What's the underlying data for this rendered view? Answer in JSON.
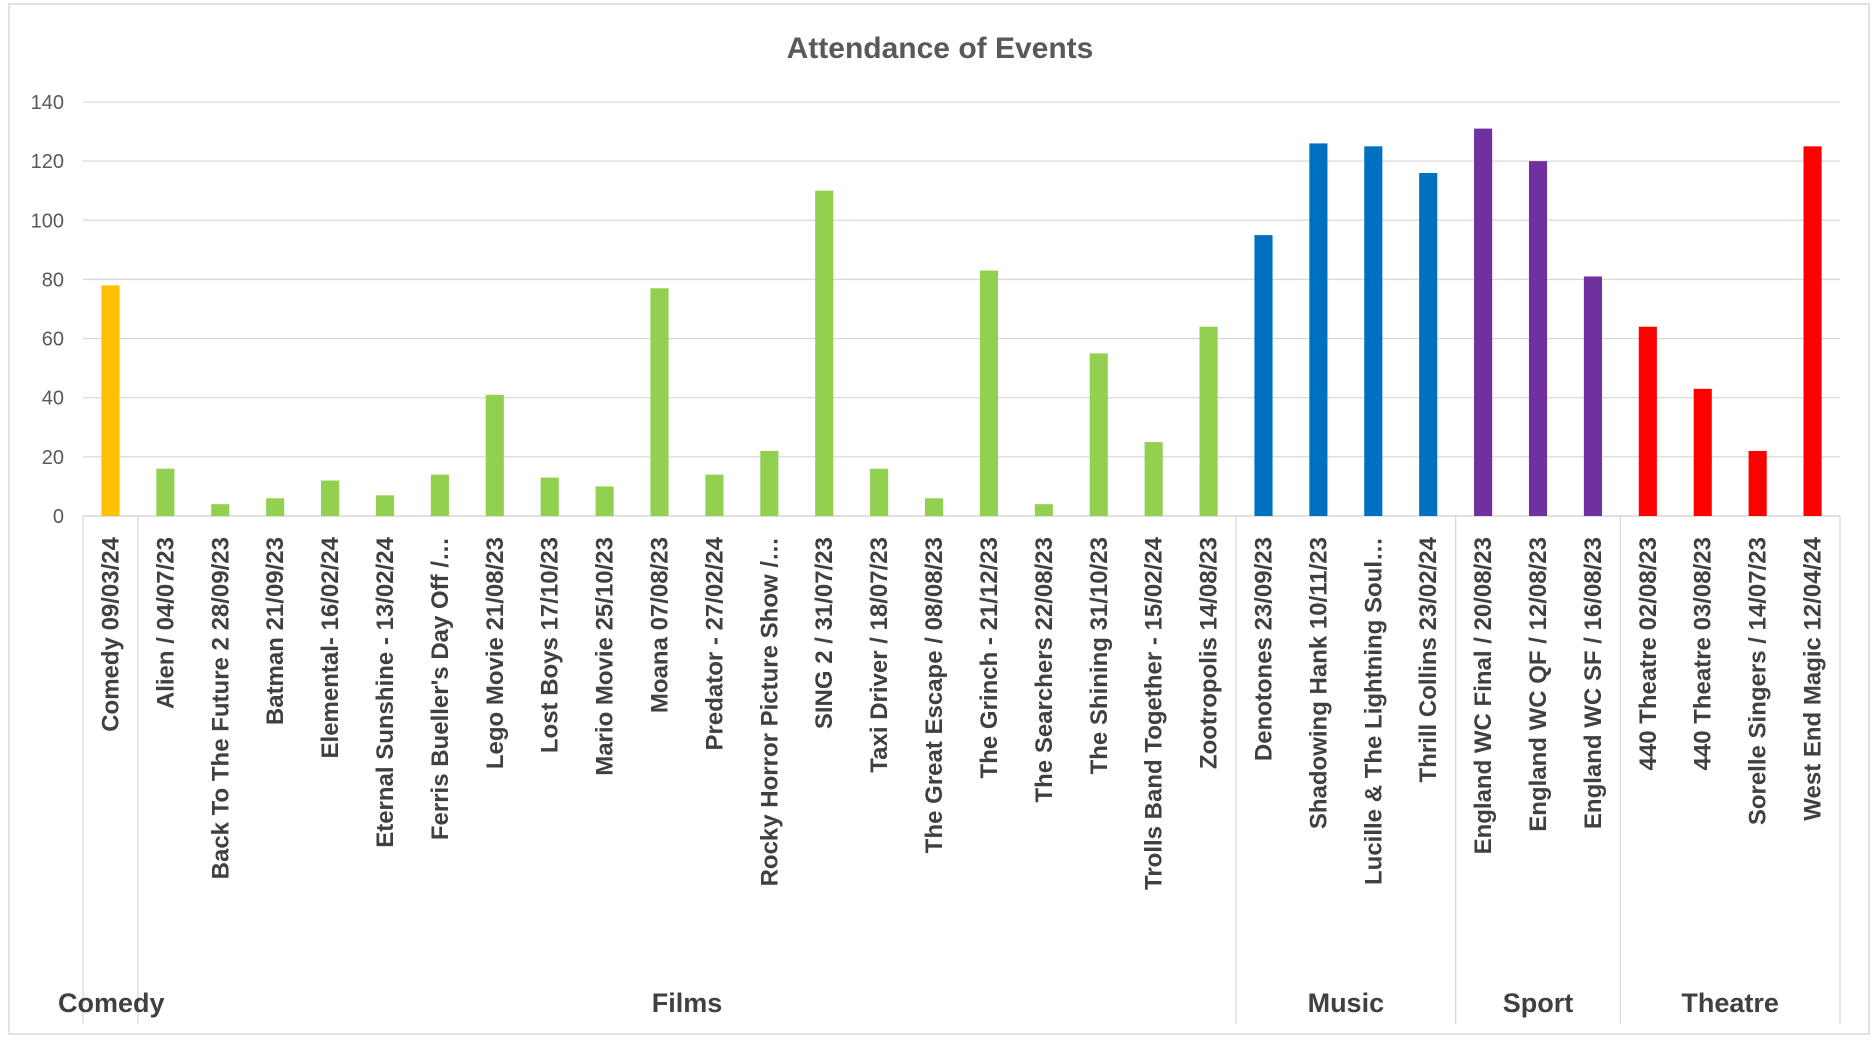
{
  "chart_data": {
    "type": "bar",
    "title": "Attendance of Events",
    "xlabel": "",
    "ylabel": "",
    "ylim": [
      0,
      140
    ],
    "ytick_step": 20,
    "grid": true,
    "legend": "none",
    "groups": [
      {
        "name": "Comedy",
        "color": "#FFC000",
        "categories": [
          "Comedy  09/03/24"
        ],
        "values": [
          78
        ]
      },
      {
        "name": "Films",
        "color": "#92D050",
        "categories": [
          "Alien / 04/07/23",
          "Back To The Future 2 28/09/23",
          "Batman 21/09/23",
          "Elemental- 16/02/24",
          "Eternal Sunshine - 13/02/24",
          "Ferris Bueller's Day Off /…",
          "Lego Movie 21/08/23",
          "Lost Boys 17/10/23",
          "Mario Movie 25/10/23",
          "Moana 07/08/23",
          "Predator - 27/02/24",
          "Rocky Horror Picture Show /…",
          "SING 2 / 31/07/23",
          "Taxi Driver / 18/07/23",
          "The Great Escape / 08/08/23",
          "The Grinch - 21/12/23",
          "The Searchers 22/08/23",
          "The Shining 31/10/23",
          "Trolls Band Together - 15/02/24",
          "Zootropolis 14/08/23"
        ],
        "values": [
          16,
          4,
          6,
          12,
          7,
          14,
          41,
          13,
          10,
          77,
          14,
          22,
          110,
          16,
          6,
          83,
          4,
          55,
          25,
          64
        ]
      },
      {
        "name": "Music",
        "color": "#0070C0",
        "categories": [
          "Denotones 23/09/23",
          "Shadowing Hank 10/11/23",
          "Lucille & The Lightning Soul…",
          "Thrill Collins 23/02/24"
        ],
        "values": [
          95,
          126,
          125,
          116
        ]
      },
      {
        "name": "Sport",
        "color": "#7030A0",
        "categories": [
          "England WC Final / 20/08/23",
          "England WC QF / 12/08/23",
          "England WC SF / 16/08/23"
        ],
        "values": [
          131,
          120,
          81
        ]
      },
      {
        "name": "Theatre",
        "color": "#FF0000",
        "categories": [
          "440 Theatre 02/08/23",
          "440 Theatre 03/08/23",
          "Sorelle Singers / 14/07/23",
          "West End Magic 12/04/24"
        ],
        "values": [
          64,
          43,
          22,
          125
        ]
      }
    ]
  }
}
